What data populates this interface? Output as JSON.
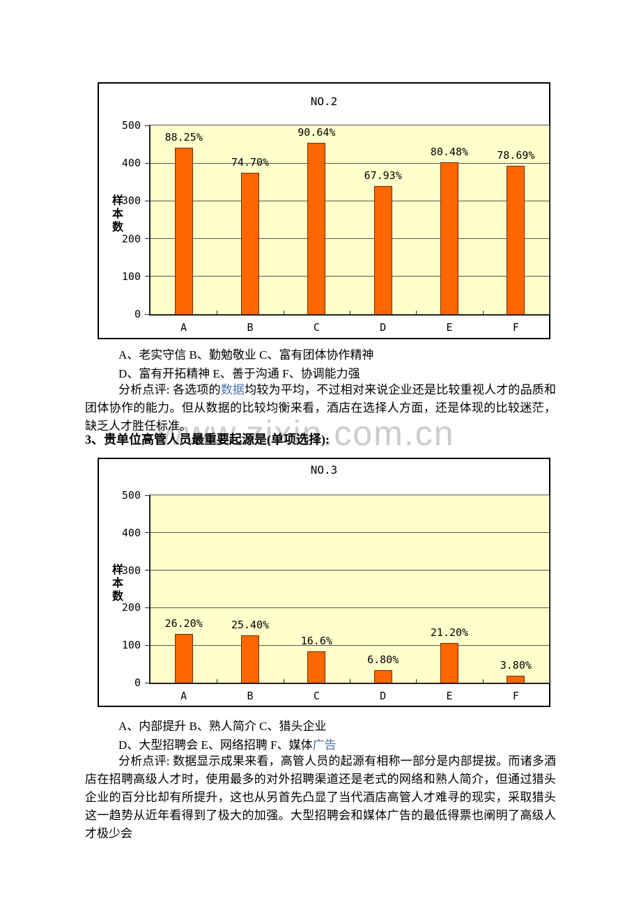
{
  "watermark": "www.zixin.com.cn",
  "colors": {
    "bar": "#FF6600",
    "bar_border": "#6b2f06",
    "plot_background": "#FFFFCC",
    "gridline": "#555555",
    "link": "#4d74ae",
    "watermark": "#cccccc"
  },
  "chart_data": [
    {
      "type": "bar",
      "title": "NO.2",
      "ylabel": "样本数",
      "xlabel": "",
      "categories": [
        "A",
        "B",
        "C",
        "D",
        "E",
        "F"
      ],
      "values": [
        441,
        374,
        453,
        340,
        402,
        393
      ],
      "bar_labels": [
        "88.25%",
        "74.70%",
        "90.64%",
        "67.93%",
        "80.48%",
        "78.69%"
      ],
      "ylim": [
        0,
        500
      ],
      "yticks": [
        0,
        100,
        200,
        300,
        400,
        500
      ],
      "grid": "horizontal",
      "legend_position": "none"
    },
    {
      "type": "bar",
      "title": "NO.3",
      "ylabel": "样本数",
      "xlabel": "",
      "categories": [
        "A",
        "B",
        "C",
        "D",
        "E",
        "F"
      ],
      "values": [
        131,
        127,
        83,
        34,
        106,
        19
      ],
      "bar_labels": [
        "26.20%",
        "25.40%",
        "16.6%",
        "6.80%",
        "21.20%",
        "3.80%"
      ],
      "ylim": [
        0,
        500
      ],
      "yticks": [
        0,
        100,
        200,
        300,
        400,
        500
      ],
      "grid": "horizontal",
      "legend_position": "none"
    }
  ],
  "text": {
    "q2_options_line1": "A、老实守信 B、勤勉敬业 C、富有团体协作精神",
    "q2_options_line2": "D、富有开拓精神 E、善于沟通 F、协调能力强",
    "q2_comment_prefix": "分析点评: 各选项的",
    "q2_comment_link": "数据",
    "q2_comment_suffix": "均较为平均，不过相对来说企业还是比较重视人才的品质和团体协作的能力。但从数据的比较均衡来看，酒店在选择人方面，还是体现的比较迷茫，缺乏人才胜任标准。",
    "q3_heading": "3、贵单位高管人员最重要起源是(单项选择):",
    "q3_options_line1": "A、内部提升 B、熟人简介 C、猎头企业",
    "q3_options_line2_prefix": "D、大型招聘会 E、网络招聘 F、媒体",
    "q3_options_line2_link": "广告",
    "q3_comment_prefix": "分析点评: ",
    "q3_comment_body": "数据显示成果来看，高管人员的起源有相称一部分是内部提拔。而诸多酒店在招聘高级人才时，使用最多的对外招聘渠道还是老式的网络和熟人简介，但通过猎头企业的百分比却有所提升，这也从另首先凸显了当代酒店高管人才难寻的现实，采取猎头这一趋势从近年看得到了极大的加强。大型招聘会和媒体广告的最低得票也阐明了高级人才极少会"
  }
}
